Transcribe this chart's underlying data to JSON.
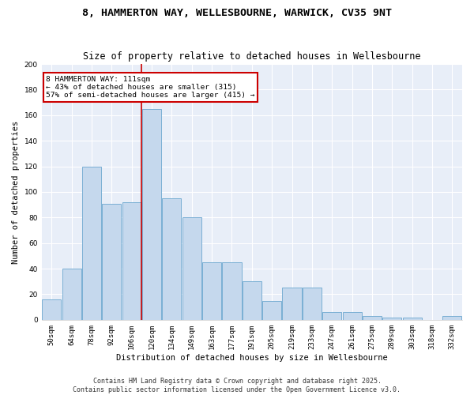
{
  "title": "8, HAMMERTON WAY, WELLESBOURNE, WARWICK, CV35 9NT",
  "subtitle": "Size of property relative to detached houses in Wellesbourne",
  "xlabel": "Distribution of detached houses by size in Wellesbourne",
  "ylabel": "Number of detached properties",
  "categories": [
    "50sqm",
    "64sqm",
    "78sqm",
    "92sqm",
    "106sqm",
    "120sqm",
    "134sqm",
    "149sqm",
    "163sqm",
    "177sqm",
    "191sqm",
    "205sqm",
    "219sqm",
    "233sqm",
    "247sqm",
    "261sqm",
    "275sqm",
    "289sqm",
    "303sqm",
    "318sqm",
    "332sqm"
  ],
  "values": [
    16,
    40,
    120,
    91,
    92,
    165,
    95,
    80,
    45,
    45,
    30,
    15,
    25,
    25,
    6,
    6,
    3,
    2,
    2,
    0,
    3
  ],
  "bar_color": "#c5d8ed",
  "bar_edge_color": "#7aafd4",
  "red_line_index": 5,
  "annotation_text": "8 HAMMERTON WAY: 111sqm\n← 43% of detached houses are smaller (315)\n57% of semi-detached houses are larger (415) →",
  "annotation_box_color": "#ffffff",
  "annotation_box_edge_color": "#cc0000",
  "footer_line1": "Contains HM Land Registry data © Crown copyright and database right 2025.",
  "footer_line2": "Contains public sector information licensed under the Open Government Licence v3.0.",
  "ylim": [
    0,
    200
  ],
  "yticks": [
    0,
    20,
    40,
    60,
    80,
    100,
    120,
    140,
    160,
    180,
    200
  ],
  "background_color": "#e8eef8",
  "grid_color": "#ffffff",
  "fig_background": "#ffffff",
  "title_fontsize": 9.5,
  "subtitle_fontsize": 8.5,
  "axis_label_fontsize": 7.5,
  "tick_fontsize": 6.5,
  "footer_fontsize": 6.0
}
